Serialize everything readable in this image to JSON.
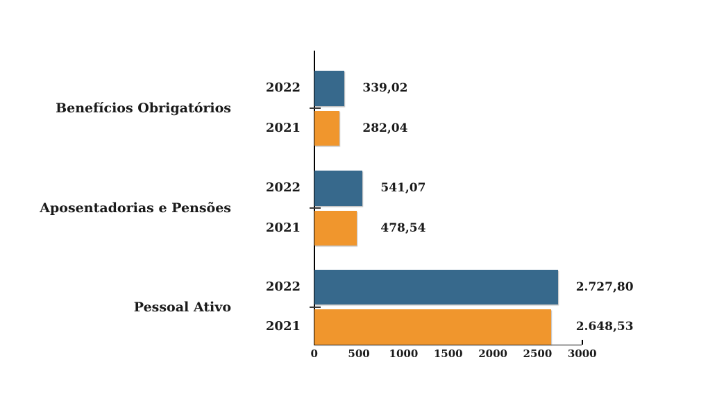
{
  "chart_data": {
    "type": "bar",
    "orientation": "horizontal",
    "title": "",
    "categories": [
      "Benefícios Obrigatórios",
      "Aposentadorias e Pensões",
      "Pessoal Ativo"
    ],
    "series": [
      {
        "name": "2022",
        "color": "#37698C",
        "values": [
          339.02,
          541.07,
          2727.8
        ],
        "labels": [
          "339,02",
          "541,07",
          "2.727,80"
        ]
      },
      {
        "name": "2021",
        "color": "#F0962D",
        "values": [
          282.04,
          478.54,
          2648.53
        ],
        "labels": [
          "282,04",
          "478,54",
          "2.648,53"
        ]
      }
    ],
    "xlim": [
      0,
      3000
    ],
    "x_ticks": [
      0,
      500,
      1000,
      1500,
      2000,
      2500,
      3000
    ],
    "x_tick_labels": [
      "0",
      "500",
      "1000",
      "1500",
      "2000",
      "2500",
      "3000"
    ],
    "legend": "none",
    "grid": false,
    "value_label_position": "outside-end",
    "bar_color_2022": "#37698C",
    "bar_color_2021": "#F0962D",
    "text_color": "#1a1a1a",
    "axis_color": "#000000"
  }
}
